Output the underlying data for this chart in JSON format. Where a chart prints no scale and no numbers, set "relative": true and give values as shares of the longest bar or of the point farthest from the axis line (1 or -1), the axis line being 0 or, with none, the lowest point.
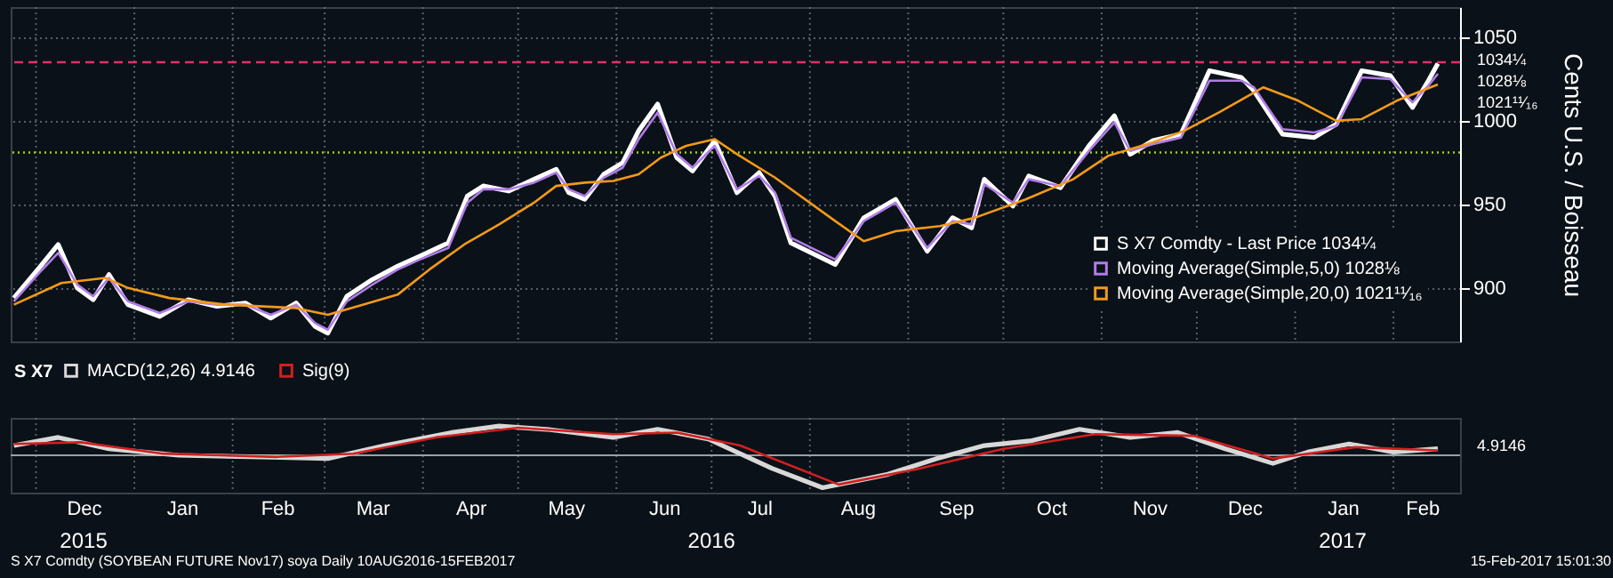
{
  "chart_data": [
    {
      "type": "line",
      "ylabel": "Cents U.S. / Boisseau",
      "xlim": [
        "2015-11-23",
        "2017-02-22"
      ],
      "ylim": [
        868,
        1068
      ],
      "yticks": [
        900,
        950,
        1000,
        1050
      ],
      "xticks": [
        {
          "value": "2015-12-01",
          "label": null
        },
        {
          "value": "2016-01-01",
          "label": null
        },
        {
          "value": "2016-02-01",
          "label": null
        },
        {
          "value": "2016-03-01",
          "label": null
        },
        {
          "value": "2016-04-01",
          "label": null
        },
        {
          "value": "2016-05-01",
          "label": null
        },
        {
          "value": "2016-06-01",
          "label": null
        },
        {
          "value": "2016-07-01",
          "label": null
        },
        {
          "value": "2016-08-01",
          "label": null
        },
        {
          "value": "2016-09-01",
          "label": null
        },
        {
          "value": "2016-10-01",
          "label": null
        },
        {
          "value": "2016-11-01",
          "label": null
        },
        {
          "value": "2016-12-01",
          "label": null
        },
        {
          "value": "2017-01-01",
          "label": null
        },
        {
          "value": "2017-02-01",
          "label": null
        }
      ],
      "tick_labels": "y",
      "grid": true,
      "legend": "bottom right",
      "series": [
        {
          "name": "S X7 Comdty - Last Price 1034¼",
          "color": "#ffffff",
          "x": [
            "2015-11-24",
            "2015-12-02",
            "2015-12-08",
            "2015-12-14",
            "2015-12-19",
            "2015-12-24",
            "2015-12-30",
            "2016-01-09",
            "2016-01-18",
            "2016-01-27",
            "2016-02-05",
            "2016-02-13",
            "2016-02-21",
            "2016-02-27",
            "2016-03-02",
            "2016-03-08",
            "2016-03-16",
            "2016-03-24",
            "2016-03-31",
            "2016-04-09",
            "2016-04-15",
            "2016-04-20",
            "2016-04-28",
            "2016-05-06",
            "2016-05-13",
            "2016-05-17",
            "2016-05-22",
            "2016-05-28",
            "2016-06-03",
            "2016-06-08",
            "2016-06-14",
            "2016-06-20",
            "2016-06-25",
            "2016-07-02",
            "2016-07-09",
            "2016-07-16",
            "2016-07-21",
            "2016-07-26",
            "2016-08-09",
            "2016-08-18",
            "2016-08-28",
            "2016-09-07",
            "2016-09-15",
            "2016-09-21",
            "2016-09-25",
            "2016-10-04",
            "2016-10-09",
            "2016-10-19",
            "2016-10-28",
            "2016-11-05",
            "2016-11-10",
            "2016-11-17",
            "2016-11-26",
            "2016-12-05",
            "2016-12-15",
            "2016-12-19",
            "2016-12-28",
            "2017-01-07",
            "2017-01-14",
            "2017-01-22",
            "2017-01-31",
            "2017-02-07",
            "2017-02-12",
            "2017-02-15"
          ],
          "values": [
            894,
            912,
            926,
            900,
            893,
            908,
            890,
            883,
            893,
            889,
            891,
            882,
            891,
            877,
            873,
            895,
            905,
            913,
            919,
            927,
            955,
            961,
            958,
            965,
            971,
            957,
            953,
            968,
            975,
            994,
            1010,
            978,
            970,
            988,
            957,
            969,
            955,
            927,
            914,
            942,
            953,
            922,
            942,
            936,
            965,
            949,
            967,
            960,
            985,
            1003,
            980,
            988,
            992,
            1030,
            1026,
            1018,
            992,
            990,
            998,
            1030,
            1027,
            1008,
            1024,
            1034.25
          ]
        },
        {
          "name": "Moving Average(Simple,5,0) 1028⅛",
          "color": "#b07ce8",
          "x": [
            "2015-11-24",
            "2015-12-02",
            "2015-12-08",
            "2015-12-14",
            "2015-12-19",
            "2015-12-24",
            "2015-12-30",
            "2016-01-09",
            "2016-01-18",
            "2016-01-27",
            "2016-02-05",
            "2016-02-13",
            "2016-02-21",
            "2016-02-27",
            "2016-03-02",
            "2016-03-08",
            "2016-03-16",
            "2016-03-24",
            "2016-03-31",
            "2016-04-09",
            "2016-04-15",
            "2016-04-20",
            "2016-04-28",
            "2016-05-06",
            "2016-05-13",
            "2016-05-17",
            "2016-05-22",
            "2016-05-28",
            "2016-06-03",
            "2016-06-08",
            "2016-06-14",
            "2016-06-20",
            "2016-06-25",
            "2016-07-02",
            "2016-07-09",
            "2016-07-16",
            "2016-07-21",
            "2016-07-26",
            "2016-08-09",
            "2016-08-18",
            "2016-08-28",
            "2016-09-07",
            "2016-09-15",
            "2016-09-21",
            "2016-09-25",
            "2016-10-04",
            "2016-10-09",
            "2016-10-19",
            "2016-10-28",
            "2016-11-05",
            "2016-11-10",
            "2016-11-17",
            "2016-11-26",
            "2016-12-05",
            "2016-12-15",
            "2016-12-19",
            "2016-12-28",
            "2017-01-07",
            "2017-01-14",
            "2017-01-22",
            "2017-01-31",
            "2017-02-07",
            "2017-02-12",
            "2017-02-15"
          ],
          "values": [
            892,
            909,
            921,
            902,
            895,
            906,
            892,
            885,
            892,
            890,
            890,
            884,
            890,
            879,
            875,
            892,
            902,
            911,
            917,
            924,
            951,
            959,
            959,
            963,
            969,
            959,
            955,
            966,
            972,
            989,
            1005,
            980,
            972,
            985,
            959,
            967,
            957,
            930,
            917,
            940,
            951,
            924,
            940,
            938,
            962,
            951,
            965,
            961,
            982,
            999,
            982,
            986,
            990,
            1024,
            1024,
            1020,
            995,
            993,
            997,
            1026,
            1025,
            1011,
            1021,
            1028.125
          ]
        },
        {
          "name": "Moving Average(Simple,20,0) 1021¹¹⁄₁₆",
          "color": "#f29a1a",
          "x": [
            "2015-11-24",
            "2015-12-09",
            "2015-12-23",
            "2015-12-30",
            "2016-01-12",
            "2016-01-30",
            "2016-02-21",
            "2016-03-02",
            "2016-03-13",
            "2016-03-24",
            "2016-04-03",
            "2016-04-14",
            "2016-04-25",
            "2016-05-06",
            "2016-05-13",
            "2016-05-22",
            "2016-05-31",
            "2016-06-08",
            "2016-06-15",
            "2016-06-23",
            "2016-07-02",
            "2016-07-09",
            "2016-07-21",
            "2016-08-09",
            "2016-08-18",
            "2016-08-28",
            "2016-09-11",
            "2016-09-22",
            "2016-10-08",
            "2016-10-23",
            "2016-11-03",
            "2016-11-17",
            "2016-11-27",
            "2016-12-08",
            "2016-12-22",
            "2017-01-02",
            "2017-01-14",
            "2017-01-22",
            "2017-02-02",
            "2017-02-10",
            "2017-02-15"
          ],
          "values": [
            890,
            903,
            906,
            900,
            894,
            890,
            888,
            884,
            890,
            896,
            911,
            926,
            938,
            951,
            961,
            963,
            964,
            968,
            978,
            985,
            989,
            980,
            966,
            940,
            928,
            934,
            937,
            942,
            953,
            965,
            979,
            987,
            994,
            1005,
            1020,
            1012,
            1000,
            1001,
            1012,
            1018,
            1021.6875
          ]
        }
      ],
      "ref_lines": [
        {
          "axis": "y",
          "value": 1035,
          "color": "#e0306a",
          "line_style": "dashed"
        },
        {
          "axis": "y",
          "value": 981,
          "color": "#a0d020",
          "line_style": "dotted"
        }
      ],
      "annotations": [
        {
          "text": "1034¼",
          "x": "2017-02-15",
          "y": 1034.25
        },
        {
          "text": "1028⅛",
          "x": "2017-02-15",
          "y": 1028.125
        },
        {
          "text": "1021¹¹⁄₁₆",
          "x": "2017-02-15",
          "y": 1021.6875
        }
      ]
    },
    {
      "type": "line",
      "relative": true,
      "xlim": [
        "2015-11-23",
        "2017-02-22"
      ],
      "legend": "top",
      "legend_title": "S X7",
      "tick_labels": "x",
      "grid": "x",
      "xticks": [
        {
          "value": "2015-12-01",
          "label": null
        },
        {
          "value": "2016-01-01",
          "label": null
        },
        {
          "value": "2016-02-01",
          "label": null
        },
        {
          "value": "2016-03-01",
          "label": null
        },
        {
          "value": "2016-04-01",
          "label": null
        },
        {
          "value": "2016-05-01",
          "label": null
        },
        {
          "value": "2016-06-01",
          "label": null
        },
        {
          "value": "2016-07-01",
          "label": null
        },
        {
          "value": "2016-08-01",
          "label": null
        },
        {
          "value": "2016-09-01",
          "label": null
        },
        {
          "value": "2016-10-01",
          "label": null
        },
        {
          "value": "2016-11-01",
          "label": null
        },
        {
          "value": "2016-12-01",
          "label": null
        },
        {
          "value": "2017-01-01",
          "label": null
        },
        {
          "value": "2017-02-01",
          "label": null
        },
        {
          "value": "2015-12-16",
          "label": "Dec"
        },
        {
          "value": "2016-01-16",
          "label": "Jan"
        },
        {
          "value": "2016-02-15",
          "label": "Feb"
        },
        {
          "value": "2016-03-16",
          "label": "Mar"
        },
        {
          "value": "2016-04-16",
          "label": "Apr"
        },
        {
          "value": "2016-05-16",
          "label": "May"
        },
        {
          "value": "2016-06-16",
          "label": "Jun"
        },
        {
          "value": "2016-07-16",
          "label": "Jul"
        },
        {
          "value": "2016-08-16",
          "label": "Aug"
        },
        {
          "value": "2016-09-16",
          "label": "Sep"
        },
        {
          "value": "2016-10-16",
          "label": "Oct"
        },
        {
          "value": "2016-11-16",
          "label": "Nov"
        },
        {
          "value": "2016-12-16",
          "label": "Dec"
        },
        {
          "value": "2017-01-16",
          "label": "Jan"
        },
        {
          "value": "2017-02-10",
          "label": "Feb"
        }
      ],
      "x2lim": [
        "2015-11-23",
        "2017-02-22"
      ],
      "x2ticks": [
        {
          "value": "2015-12-16",
          "label": "2015"
        },
        {
          "value": "2016-07-01",
          "label": "2016"
        },
        {
          "value": "2017-01-16",
          "label": "2017"
        }
      ],
      "series": [
        {
          "name": "MACD(12,26) 4.9146",
          "color": "#d8d8d8",
          "x": [
            "2015-11-24",
            "2015-12-08",
            "2015-12-24",
            "2016-01-15",
            "2016-02-10",
            "2016-03-02",
            "2016-03-20",
            "2016-04-10",
            "2016-04-25",
            "2016-05-10",
            "2016-05-31",
            "2016-06-14",
            "2016-06-30",
            "2016-07-20",
            "2016-08-05",
            "2016-08-25",
            "2016-09-10",
            "2016-09-25",
            "2016-10-10",
            "2016-10-25",
            "2016-11-10",
            "2016-11-25",
            "2016-12-10",
            "2016-12-25",
            "2017-01-05",
            "2017-01-18",
            "2017-02-01",
            "2017-02-15"
          ],
          "values": [
            0.3,
            0.55,
            0.2,
            0,
            -0.05,
            -0.1,
            0.3,
            0.7,
            0.9,
            0.8,
            0.55,
            0.8,
            0.5,
            -0.4,
            -1,
            -0.6,
            -0.1,
            0.3,
            0.45,
            0.8,
            0.55,
            0.7,
            0.2,
            -0.25,
            0.1,
            0.35,
            0.1,
            0.2
          ]
        },
        {
          "name": "Sig(9)",
          "color": "#d02020",
          "x": [
            "2015-11-24",
            "2015-12-15",
            "2016-01-10",
            "2016-02-15",
            "2016-03-10",
            "2016-04-05",
            "2016-05-01",
            "2016-05-31",
            "2016-06-20",
            "2016-07-10",
            "2016-08-10",
            "2016-09-05",
            "2016-10-01",
            "2016-10-30",
            "2016-11-30",
            "2016-12-25",
            "2017-01-20",
            "2017-02-15"
          ],
          "values": [
            0.35,
            0.4,
            0.05,
            -0.05,
            0.05,
            0.55,
            0.85,
            0.65,
            0.7,
            0.3,
            -0.9,
            -0.4,
            0.2,
            0.65,
            0.6,
            -0.1,
            0.25,
            0.15
          ]
        }
      ],
      "annotations": [
        {
          "text": "4.9146",
          "x": "2017-02-15",
          "y": 0.2
        },
        "S X7 Comdty (SOYBEAN FUTURE Nov17) soya Daily 10AUG2016-15FEB2017",
        "15-Feb-2017 15:01:30"
      ]
    }
  ]
}
